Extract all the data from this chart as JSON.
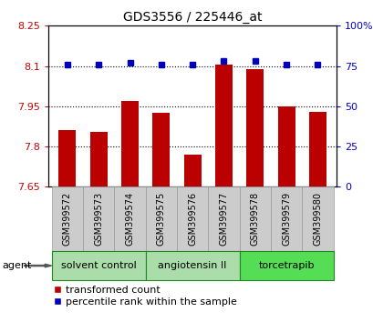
{
  "title": "GDS3556 / 225446_at",
  "samples": [
    "GSM399572",
    "GSM399573",
    "GSM399574",
    "GSM399575",
    "GSM399576",
    "GSM399577",
    "GSM399578",
    "GSM399579",
    "GSM399580"
  ],
  "bar_values": [
    7.86,
    7.855,
    7.97,
    7.925,
    7.77,
    8.105,
    8.09,
    7.95,
    7.93
  ],
  "percentile_values": [
    76,
    76,
    77,
    76,
    76,
    78,
    78,
    76,
    76
  ],
  "ylim_left": [
    7.65,
    8.25
  ],
  "ylim_right": [
    0,
    100
  ],
  "yticks_left": [
    7.65,
    7.8,
    7.95,
    8.1,
    8.25
  ],
  "yticks_right": [
    0,
    25,
    50,
    75,
    100
  ],
  "ytick_labels_left": [
    "7.65",
    "7.8",
    "7.95",
    "8.1",
    "8.25"
  ],
  "ytick_labels_right": [
    "0",
    "25",
    "50",
    "75",
    "100%"
  ],
  "bar_color": "#bb0000",
  "dot_color": "#0000bb",
  "bar_width": 0.55,
  "groups": [
    {
      "label": "solvent control",
      "samples": [
        0,
        1,
        2
      ],
      "color": "#aaddaa"
    },
    {
      "label": "angiotensin II",
      "samples": [
        3,
        4,
        5
      ],
      "color": "#aaddaa"
    },
    {
      "label": "torcetrapib",
      "samples": [
        6,
        7,
        8
      ],
      "color": "#44dd44"
    }
  ],
  "legend_bar_label": "transformed count",
  "legend_dot_label": "percentile rank within the sample",
  "agent_label": "agent",
  "background_color": "#ffffff",
  "plot_bg": "#ffffff",
  "tick_color_left": "#cc0000",
  "tick_color_right": "#0000cc",
  "title_fontsize": 10,
  "tick_fontsize": 8,
  "label_fontsize": 8,
  "sample_label_fontsize": 7
}
